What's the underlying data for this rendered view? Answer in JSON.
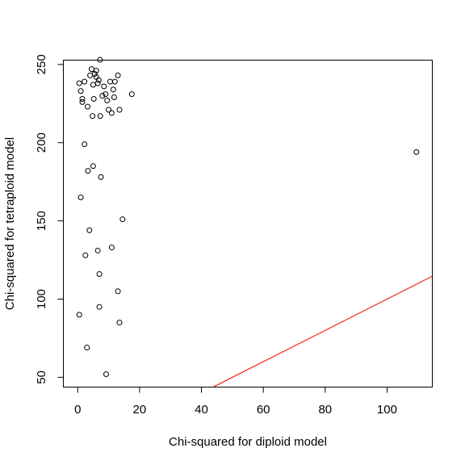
{
  "chart_data": {
    "type": "scatter",
    "title": "",
    "xlabel": "Chi-squared for diploid model",
    "ylabel": "Chi-squared for tetraploid model",
    "xlim": [
      -4.5,
      114.5
    ],
    "ylim": [
      44,
      252.5
    ],
    "xticks": [
      0,
      20,
      40,
      60,
      80,
      100
    ],
    "yticks": [
      50,
      100,
      150,
      200,
      250
    ],
    "grid": false,
    "legend": "none",
    "point_marker": "open-circle",
    "colors": {
      "points": "#000000",
      "reference_line": "#ff0000",
      "axes": "#000000"
    },
    "series": [
      {
        "points": [
          [
            0.5,
            238
          ],
          [
            1.0,
            233
          ],
          [
            1.5,
            228
          ],
          [
            1.5,
            226
          ],
          [
            2.2,
            239
          ],
          [
            3.2,
            223
          ],
          [
            4.0,
            243
          ],
          [
            4.5,
            247
          ],
          [
            4.8,
            217
          ],
          [
            5.0,
            237
          ],
          [
            5.2,
            228
          ],
          [
            5.5,
            244
          ],
          [
            6.0,
            246
          ],
          [
            6.0,
            242
          ],
          [
            6.5,
            238
          ],
          [
            6.8,
            240
          ],
          [
            7.2,
            253
          ],
          [
            7.3,
            217
          ],
          [
            8.0,
            230
          ],
          [
            8.5,
            236
          ],
          [
            9.0,
            231
          ],
          [
            9.5,
            227
          ],
          [
            10.0,
            221
          ],
          [
            10.5,
            239
          ],
          [
            11.0,
            219
          ],
          [
            11.5,
            234
          ],
          [
            11.8,
            229
          ],
          [
            12.0,
            239
          ],
          [
            13.0,
            243
          ],
          [
            13.5,
            221
          ],
          [
            17.5,
            231
          ],
          [
            109.5,
            194
          ],
          [
            2.2,
            199
          ],
          [
            3.3,
            182
          ],
          [
            5.0,
            185
          ],
          [
            7.5,
            178
          ],
          [
            1.0,
            165
          ],
          [
            3.8,
            144
          ],
          [
            14.5,
            151
          ],
          [
            2.5,
            128
          ],
          [
            6.5,
            131
          ],
          [
            11.0,
            133
          ],
          [
            7.0,
            116
          ],
          [
            13.0,
            105
          ],
          [
            7.0,
            95
          ],
          [
            0.5,
            90
          ],
          [
            13.5,
            85
          ],
          [
            3.0,
            69
          ],
          [
            9.2,
            52
          ]
        ]
      }
    ],
    "reference_line": {
      "intercept": 0,
      "slope": 1
    }
  }
}
